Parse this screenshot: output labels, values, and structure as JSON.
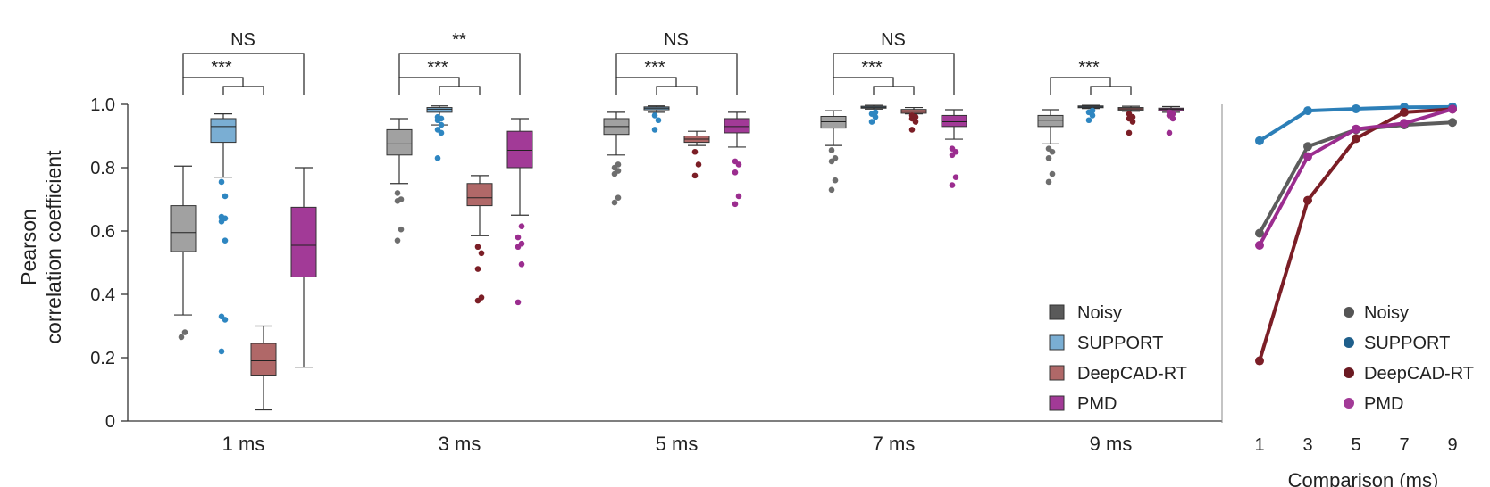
{
  "chart_data": [
    {
      "type": "boxplot",
      "ylabel_lines": [
        "Pearson",
        "correlation coefficient"
      ],
      "ylim": [
        0,
        1.0
      ],
      "yticks": [
        {
          "value": 0,
          "label": "0"
        },
        {
          "value": 0.2,
          "label": "0.2"
        },
        {
          "value": 0.4,
          "label": "0.4"
        },
        {
          "value": 0.6,
          "label": "0.6"
        },
        {
          "value": 0.8,
          "label": "0.8"
        },
        {
          "value": 1.0,
          "label": "1.0"
        }
      ],
      "categories": [
        "1 ms",
        "3 ms",
        "5 ms",
        "7 ms",
        "9 ms"
      ],
      "series": [
        {
          "name": "Noisy",
          "color": "#6e6e6e",
          "boxes": [
            {
              "whislo": 0.335,
              "q1": 0.535,
              "med": 0.595,
              "q3": 0.68,
              "whishi": 0.805,
              "fliers": [
                0.265,
                0.28
              ]
            },
            {
              "whislo": 0.75,
              "q1": 0.84,
              "med": 0.875,
              "q3": 0.92,
              "whishi": 0.955,
              "fliers": [
                0.57,
                0.605,
                0.695,
                0.7,
                0.72
              ]
            },
            {
              "whislo": 0.84,
              "q1": 0.905,
              "med": 0.93,
              "q3": 0.955,
              "whishi": 0.975,
              "fliers": [
                0.69,
                0.705,
                0.78,
                0.79,
                0.8,
                0.81
              ]
            },
            {
              "whislo": 0.87,
              "q1": 0.925,
              "med": 0.945,
              "q3": 0.962,
              "whishi": 0.98,
              "fliers": [
                0.73,
                0.76,
                0.82,
                0.83,
                0.855
              ]
            },
            {
              "whislo": 0.875,
              "q1": 0.93,
              "med": 0.95,
              "q3": 0.965,
              "whishi": 0.983,
              "fliers": [
                0.755,
                0.78,
                0.83,
                0.85,
                0.86
              ]
            }
          ]
        },
        {
          "name": "SUPPORT",
          "color": "#2e86c1",
          "boxes": [
            {
              "whislo": 0.77,
              "q1": 0.88,
              "med": 0.93,
              "q3": 0.955,
              "whishi": 0.97,
              "fliers": [
                0.22,
                0.32,
                0.33,
                0.57,
                0.63,
                0.64,
                0.645,
                0.71,
                0.755
              ]
            },
            {
              "whislo": 0.935,
              "q1": 0.975,
              "med": 0.985,
              "q3": 0.99,
              "whishi": 0.995,
              "fliers": [
                0.83,
                0.91,
                0.92,
                0.935,
                0.95,
                0.955,
                0.96
              ]
            },
            {
              "whislo": 0.975,
              "q1": 0.983,
              "med": 0.988,
              "q3": 0.992,
              "whishi": 0.995,
              "fliers": [
                0.92,
                0.95,
                0.965
              ]
            },
            {
              "whislo": 0.985,
              "q1": 0.988,
              "med": 0.991,
              "q3": 0.994,
              "whishi": 0.997,
              "fliers": [
                0.945,
                0.96,
                0.97,
                0.975
              ]
            },
            {
              "whislo": 0.987,
              "q1": 0.99,
              "med": 0.992,
              "q3": 0.995,
              "whishi": 0.997,
              "fliers": [
                0.95,
                0.965,
                0.975,
                0.98
              ]
            }
          ]
        },
        {
          "name": "DeepCAD-RT",
          "color": "#7b1e26",
          "boxes": [
            {
              "whislo": 0.035,
              "q1": 0.145,
              "med": 0.19,
              "q3": 0.245,
              "whishi": 0.3,
              "fliers": []
            },
            {
              "whislo": 0.585,
              "q1": 0.68,
              "med": 0.705,
              "q3": 0.75,
              "whishi": 0.775,
              "fliers": [
                0.38,
                0.39,
                0.48,
                0.53,
                0.55
              ]
            },
            {
              "whislo": 0.87,
              "q1": 0.88,
              "med": 0.89,
              "q3": 0.9,
              "whishi": 0.915,
              "fliers": [
                0.775,
                0.81,
                0.85
              ]
            },
            {
              "whislo": 0.97,
              "q1": 0.972,
              "med": 0.978,
              "q3": 0.984,
              "whishi": 0.99,
              "fliers": [
                0.92,
                0.945,
                0.955,
                0.96,
                0.965
              ]
            },
            {
              "whislo": 0.978,
              "q1": 0.982,
              "med": 0.986,
              "q3": 0.99,
              "whishi": 0.994,
              "fliers": [
                0.91,
                0.945,
                0.955,
                0.96,
                0.97
              ]
            }
          ]
        },
        {
          "name": "PMD",
          "color": "#9b2d8f",
          "boxes": [
            {
              "whislo": 0.17,
              "q1": 0.455,
              "med": 0.555,
              "q3": 0.675,
              "whishi": 0.8,
              "fliers": []
            },
            {
              "whislo": 0.65,
              "q1": 0.8,
              "med": 0.855,
              "q3": 0.915,
              "whishi": 0.955,
              "fliers": [
                0.375,
                0.495,
                0.55,
                0.56,
                0.58,
                0.615
              ]
            },
            {
              "whislo": 0.865,
              "q1": 0.91,
              "med": 0.93,
              "q3": 0.955,
              "whishi": 0.975,
              "fliers": [
                0.685,
                0.71,
                0.785,
                0.81,
                0.82
              ]
            },
            {
              "whislo": 0.89,
              "q1": 0.93,
              "med": 0.945,
              "q3": 0.965,
              "whishi": 0.983,
              "fliers": [
                0.745,
                0.77,
                0.84,
                0.85,
                0.86
              ]
            },
            {
              "whislo": 0.975,
              "q1": 0.98,
              "med": 0.985,
              "q3": 0.988,
              "whishi": 0.993,
              "fliers": [
                0.91,
                0.955,
                0.965,
                0.97,
                0.975
              ]
            }
          ]
        }
      ],
      "significance": [
        {
          "top": "NS",
          "inner": "***"
        },
        {
          "top": "**",
          "inner": "***"
        },
        {
          "top": "NS",
          "inner": "***"
        },
        {
          "top": "NS",
          "inner": "***"
        },
        {
          "top": "",
          "inner": "***"
        }
      ],
      "legend": [
        {
          "name": "Noisy",
          "color": "#5a5a5a"
        },
        {
          "name": "SUPPORT",
          "color": "#7aaed3"
        },
        {
          "name": "DeepCAD-RT",
          "color": "#b06868"
        },
        {
          "name": "PMD",
          "color": "#a23a97"
        }
      ]
    },
    {
      "type": "line",
      "xlabel": "Comparison (ms)",
      "x": [
        1,
        3,
        5,
        7,
        9
      ],
      "xticks": [
        "1",
        "3",
        "5",
        "7",
        "9"
      ],
      "ylim": [
        0,
        1.0
      ],
      "series": [
        {
          "name": "Noisy",
          "color": "#5c5c5c",
          "values": [
            0.593,
            0.867,
            0.92,
            0.935,
            0.943
          ]
        },
        {
          "name": "SUPPORT",
          "color": "#2c7fb8",
          "values": [
            0.885,
            0.98,
            0.986,
            0.991,
            0.992
          ]
        },
        {
          "name": "DeepCAD-RT",
          "color": "#7b1e26",
          "values": [
            0.19,
            0.697,
            0.892,
            0.975,
            0.985
          ]
        },
        {
          "name": "PMD",
          "color": "#9b2d8f",
          "values": [
            0.555,
            0.835,
            0.922,
            0.94,
            0.985
          ]
        }
      ],
      "legend": [
        {
          "name": "Noisy",
          "color": "#555555"
        },
        {
          "name": "SUPPORT",
          "color": "#1f5f8b"
        },
        {
          "name": "DeepCAD-RT",
          "color": "#6b1a22"
        },
        {
          "name": "PMD",
          "color": "#a23a97"
        }
      ]
    }
  ]
}
